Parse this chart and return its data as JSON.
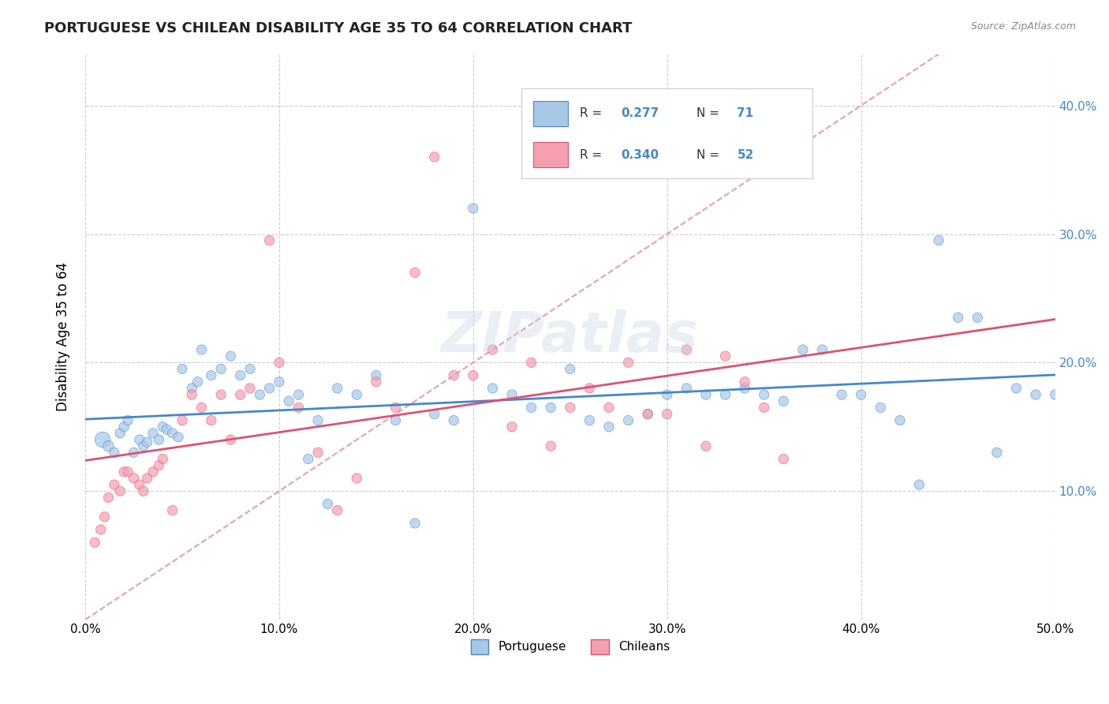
{
  "title": "PORTUGUESE VS CHILEAN DISABILITY AGE 35 TO 64 CORRELATION CHART",
  "source": "Source: ZipAtlas.com",
  "xlabel": "",
  "ylabel": "Disability Age 35 to 64",
  "xlim": [
    0.0,
    0.5
  ],
  "ylim": [
    0.0,
    0.44
  ],
  "xticks": [
    0.0,
    0.1,
    0.2,
    0.3,
    0.4,
    0.5
  ],
  "yticks": [
    0.0,
    0.1,
    0.2,
    0.3,
    0.4
  ],
  "xtick_labels": [
    "0.0%",
    "10.0%",
    "20.0%",
    "30.0%",
    "40.0%",
    "50.0%"
  ],
  "ytick_labels": [
    "",
    "10.0%",
    "20.0%",
    "30.0%",
    "40.0%"
  ],
  "background_color": "#ffffff",
  "grid_color": "#cccccc",
  "portuguese_color": "#a8c8e8",
  "chilean_color": "#f4a0b0",
  "portuguese_line_color": "#4488cc",
  "chilean_line_color": "#e05070",
  "diagonal_color": "#e0a0a8",
  "R_portuguese": 0.277,
  "N_portuguese": 71,
  "R_chilean": 0.34,
  "N_chilean": 52,
  "portuguese_x": [
    0.009,
    0.012,
    0.015,
    0.018,
    0.02,
    0.022,
    0.025,
    0.028,
    0.03,
    0.032,
    0.035,
    0.038,
    0.04,
    0.042,
    0.045,
    0.048,
    0.05,
    0.055,
    0.058,
    0.06,
    0.065,
    0.07,
    0.075,
    0.08,
    0.085,
    0.09,
    0.095,
    0.1,
    0.105,
    0.11,
    0.115,
    0.12,
    0.125,
    0.13,
    0.14,
    0.15,
    0.16,
    0.17,
    0.18,
    0.19,
    0.2,
    0.21,
    0.22,
    0.23,
    0.24,
    0.25,
    0.26,
    0.27,
    0.28,
    0.29,
    0.3,
    0.31,
    0.32,
    0.33,
    0.34,
    0.35,
    0.36,
    0.37,
    0.38,
    0.39,
    0.4,
    0.41,
    0.42,
    0.43,
    0.44,
    0.45,
    0.46,
    0.47,
    0.48,
    0.49,
    0.5
  ],
  "portuguese_y": [
    0.14,
    0.135,
    0.13,
    0.145,
    0.15,
    0.155,
    0.13,
    0.14,
    0.135,
    0.138,
    0.145,
    0.14,
    0.15,
    0.148,
    0.145,
    0.142,
    0.195,
    0.18,
    0.185,
    0.21,
    0.19,
    0.195,
    0.205,
    0.19,
    0.195,
    0.175,
    0.18,
    0.185,
    0.17,
    0.175,
    0.125,
    0.155,
    0.09,
    0.18,
    0.175,
    0.19,
    0.155,
    0.075,
    0.16,
    0.155,
    0.32,
    0.18,
    0.175,
    0.165,
    0.165,
    0.195,
    0.155,
    0.15,
    0.155,
    0.16,
    0.175,
    0.18,
    0.175,
    0.175,
    0.18,
    0.175,
    0.17,
    0.21,
    0.21,
    0.175,
    0.175,
    0.165,
    0.155,
    0.105,
    0.295,
    0.235,
    0.235,
    0.13,
    0.18,
    0.175,
    0.175
  ],
  "portuguese_sizes": [
    200,
    100,
    80,
    80,
    80,
    80,
    80,
    80,
    80,
    80,
    80,
    80,
    80,
    80,
    80,
    80,
    80,
    80,
    80,
    80,
    80,
    80,
    80,
    80,
    80,
    80,
    80,
    80,
    80,
    80,
    80,
    80,
    80,
    80,
    80,
    80,
    80,
    80,
    80,
    80,
    80,
    80,
    80,
    80,
    80,
    80,
    80,
    80,
    80,
    80,
    80,
    80,
    80,
    80,
    80,
    80,
    80,
    80,
    80,
    80,
    80,
    80,
    80,
    80,
    80,
    80,
    80,
    80,
    80,
    80,
    80
  ],
  "chilean_x": [
    0.005,
    0.008,
    0.01,
    0.012,
    0.015,
    0.018,
    0.02,
    0.022,
    0.025,
    0.028,
    0.03,
    0.032,
    0.035,
    0.038,
    0.04,
    0.045,
    0.05,
    0.055,
    0.06,
    0.065,
    0.07,
    0.075,
    0.08,
    0.085,
    0.095,
    0.1,
    0.11,
    0.12,
    0.13,
    0.14,
    0.15,
    0.16,
    0.17,
    0.18,
    0.19,
    0.2,
    0.21,
    0.22,
    0.23,
    0.24,
    0.25,
    0.26,
    0.27,
    0.28,
    0.29,
    0.3,
    0.31,
    0.32,
    0.33,
    0.34,
    0.35,
    0.36
  ],
  "chilean_y": [
    0.06,
    0.07,
    0.08,
    0.095,
    0.105,
    0.1,
    0.115,
    0.115,
    0.11,
    0.105,
    0.1,
    0.11,
    0.115,
    0.12,
    0.125,
    0.085,
    0.155,
    0.175,
    0.165,
    0.155,
    0.175,
    0.14,
    0.175,
    0.18,
    0.295,
    0.2,
    0.165,
    0.13,
    0.085,
    0.11,
    0.185,
    0.165,
    0.27,
    0.36,
    0.19,
    0.19,
    0.21,
    0.15,
    0.2,
    0.135,
    0.165,
    0.18,
    0.165,
    0.2,
    0.16,
    0.16,
    0.21,
    0.135,
    0.205,
    0.185,
    0.165,
    0.125
  ],
  "chilean_sizes": [
    80,
    80,
    80,
    80,
    80,
    80,
    80,
    80,
    80,
    80,
    80,
    80,
    80,
    80,
    80,
    80,
    80,
    80,
    80,
    80,
    80,
    80,
    80,
    80,
    80,
    80,
    80,
    80,
    80,
    80,
    80,
    80,
    80,
    80,
    80,
    80,
    80,
    80,
    80,
    80,
    80,
    80,
    80,
    80,
    80,
    80,
    80,
    80,
    80,
    80,
    80,
    80
  ]
}
